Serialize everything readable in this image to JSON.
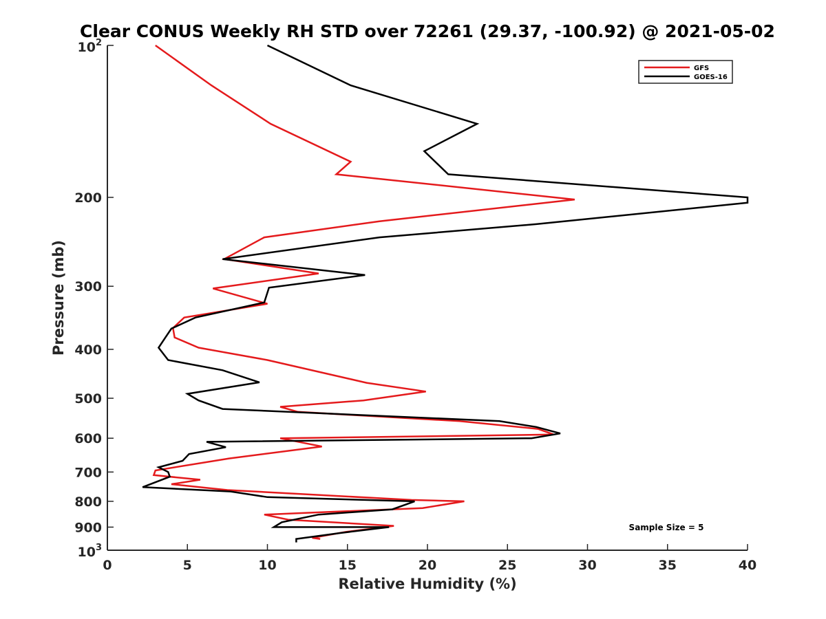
{
  "chart_data": {
    "type": "line",
    "title": "Clear CONUS Weekly RH STD over 72261 (29.37, -100.92) @ 2021-05-02",
    "xlabel": "Relative Humidity (%)",
    "ylabel": "Pressure (mb)",
    "xlim": [
      0,
      40
    ],
    "ylim": [
      100,
      1000
    ],
    "yscale": "log",
    "y_reversed": true,
    "x_ticks": [
      "0",
      "5",
      "10",
      "15",
      "20",
      "25",
      "30",
      "35",
      "40"
    ],
    "y_ticks": [
      {
        "value": 100,
        "base": "10",
        "exp": "2"
      },
      {
        "value": 200,
        "label": "200"
      },
      {
        "value": 300,
        "label": "300"
      },
      {
        "value": 400,
        "label": "400"
      },
      {
        "value": 500,
        "label": "500"
      },
      {
        "value": 600,
        "label": "600"
      },
      {
        "value": 700,
        "label": "700"
      },
      {
        "value": 800,
        "label": "800"
      },
      {
        "value": 900,
        "label": "900"
      },
      {
        "value": 1000,
        "base": "10",
        "exp": "3"
      }
    ],
    "grid": false,
    "legend_position": "top-right",
    "annotation": "Sample Size = 5",
    "series": [
      {
        "name": "GFS",
        "color": "#e41a1c",
        "x": [
          3.0,
          6.5,
          10.2,
          15.2,
          14.3,
          29.2,
          17.0,
          9.8,
          7.3,
          13.2,
          6.6,
          10.0,
          4.8,
          4.1,
          4.2,
          5.7,
          10.0,
          16.2,
          19.9,
          16.0,
          10.8,
          11.9,
          22.0,
          26.9,
          27.9,
          10.8,
          13.4,
          7.6,
          3.0,
          2.9,
          5.8,
          4.0,
          7.5,
          19.0,
          22.3,
          19.7,
          9.8,
          11.3,
          17.9,
          14.9,
          12.8,
          13.3
        ],
        "y": [
          100,
          120,
          143,
          170,
          180,
          202,
          223,
          240,
          265,
          283,
          303,
          325,
          346,
          363,
          379,
          397,
          420,
          466,
          485,
          505,
          520,
          532,
          555,
          575,
          590,
          600,
          623,
          658,
          695,
          710,
          725,
          740,
          760,
          795,
          800,
          825,
          850,
          870,
          895,
          920,
          945,
          950
        ]
      },
      {
        "name": "GOES-16",
        "color": "#000000",
        "x": [
          10.0,
          15.2,
          23.1,
          19.8,
          21.3,
          40.0,
          40.0,
          26.8,
          17.0,
          7.2,
          16.1,
          10.1,
          9.8,
          5.5,
          4.0,
          3.6,
          3.2,
          3.8,
          7.2,
          9.5,
          5.0,
          5.7,
          7.2,
          24.5,
          26.8,
          28.3,
          26.5,
          6.2,
          7.4,
          5.1,
          4.7,
          3.2,
          3.8,
          3.9,
          2.2,
          7.7,
          10.0,
          19.2,
          17.8,
          13.2,
          10.9,
          10.4,
          17.6,
          14.5,
          11.8,
          11.8
        ],
        "y": [
          100,
          120,
          143,
          162,
          180,
          200,
          205,
          226,
          240,
          265,
          285,
          302,
          323,
          346,
          364,
          380,
          397,
          420,
          440,
          465,
          490,
          505,
          525,
          555,
          570,
          587,
          600,
          610,
          625,
          645,
          665,
          685,
          700,
          715,
          750,
          765,
          785,
          800,
          830,
          850,
          880,
          900,
          900,
          925,
          950,
          965
        ]
      }
    ]
  }
}
